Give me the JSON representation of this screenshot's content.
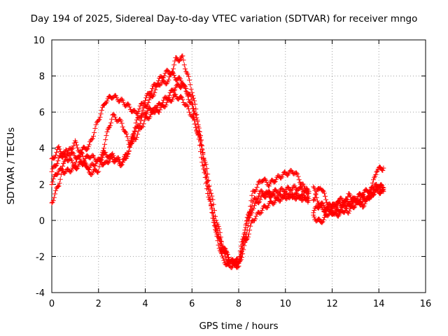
{
  "chart_data": {
    "type": "scatter",
    "title": "Day 194 of 2025, Sidereal Day-to-day VTEC variation (SDTVAR) for receiver mngo",
    "xlabel": "GPS time / hours",
    "ylabel": "SDTVAR / TECUs",
    "xlim": [
      0,
      16
    ],
    "ylim": [
      -4,
      10
    ],
    "xticks": [
      "0",
      "2",
      "4",
      "6",
      "8",
      "10",
      "12",
      "14",
      "16"
    ],
    "yticks": [
      "-4",
      "-2",
      "0",
      "2",
      "4",
      "6",
      "8",
      "10"
    ],
    "grid": true,
    "marker": "plus",
    "color": "#ff0000",
    "series": [
      {
        "x": [
          0.0,
          0.3,
          0.6,
          1.0,
          1.3,
          1.6,
          2.0,
          2.3,
          2.6,
          3.0,
          3.3,
          3.6,
          4.0,
          4.3,
          4.6,
          5.0,
          5.3,
          5.6,
          6.0,
          6.3,
          6.6,
          7.0,
          7.3,
          7.6,
          8.0,
          8.3,
          8.6,
          9.0,
          9.3,
          9.6,
          10.0,
          10.4,
          10.8,
          11.0
        ],
        "y": [
          2.7,
          3.4,
          3.8,
          3.6,
          3.2,
          2.9,
          3.3,
          3.7,
          3.4,
          3.1,
          3.8,
          5.0,
          6.0,
          6.2,
          6.1,
          6.6,
          6.9,
          6.7,
          5.8,
          4.7,
          3.0,
          0.3,
          -1.3,
          -2.2,
          -2.5,
          -1.2,
          0.0,
          0.6,
          0.9,
          1.1,
          1.3,
          1.4,
          1.3,
          1.2
        ]
      },
      {
        "x": [
          0.0,
          0.3,
          0.6,
          1.0,
          1.3,
          1.6,
          2.0,
          2.3,
          2.6,
          3.0,
          3.3,
          3.6,
          4.0,
          4.3,
          4.6,
          5.0,
          5.3,
          5.6,
          6.0,
          6.3,
          6.6,
          7.0,
          7.3,
          7.6,
          8.0,
          8.3,
          8.6,
          9.0,
          9.3,
          9.6,
          10.0,
          10.4,
          10.8,
          11.0
        ],
        "y": [
          3.3,
          4.0,
          3.5,
          3.1,
          3.9,
          4.1,
          5.6,
          6.6,
          6.9,
          6.6,
          6.3,
          5.9,
          6.7,
          7.3,
          7.8,
          8.3,
          7.9,
          7.7,
          6.3,
          4.4,
          2.0,
          -0.2,
          -1.7,
          -2.4,
          -2.2,
          -0.8,
          0.7,
          1.3,
          1.5,
          1.6,
          1.7,
          1.8,
          1.7,
          1.6
        ]
      },
      {
        "x": [
          0.0,
          0.3,
          0.6,
          1.0,
          1.3,
          1.6,
          2.0,
          2.3,
          2.6,
          3.0,
          3.3,
          3.6,
          4.0,
          4.3,
          4.6,
          5.0,
          5.3,
          5.6,
          6.0,
          6.3,
          6.6,
          7.0,
          7.3,
          7.6,
          8.0,
          8.3,
          8.6,
          9.0,
          9.3,
          9.6,
          10.0,
          10.4,
          10.8,
          11.0
        ],
        "y": [
          1.0,
          2.0,
          3.6,
          4.3,
          3.6,
          2.6,
          2.8,
          4.5,
          5.8,
          5.4,
          4.3,
          4.6,
          5.6,
          5.9,
          6.4,
          6.9,
          7.4,
          7.5,
          6.7,
          5.0,
          2.5,
          -0.6,
          -2.1,
          -2.6,
          -2.2,
          -0.2,
          1.0,
          1.6,
          1.4,
          1.3,
          1.4,
          1.3,
          1.2,
          1.1
        ]
      },
      {
        "x": [
          0.0,
          0.3,
          0.6,
          1.0,
          1.3,
          1.6,
          2.0,
          2.3,
          2.6,
          3.0,
          3.3,
          3.6,
          4.0,
          4.3,
          4.6,
          5.0,
          5.3,
          5.6,
          6.0,
          6.3,
          6.6,
          7.0,
          7.3,
          7.6,
          8.0,
          8.3,
          8.6,
          9.0,
          9.3,
          9.6,
          10.0,
          10.4,
          10.8,
          11.0
        ],
        "y": [
          2.1,
          2.8,
          2.7,
          2.9,
          3.2,
          3.6,
          3.3,
          3.1,
          3.6,
          3.2,
          3.9,
          5.4,
          6.3,
          6.9,
          7.6,
          7.7,
          8.9,
          9.0,
          7.2,
          5.2,
          2.6,
          -0.4,
          -1.5,
          -2.1,
          -2.6,
          -0.5,
          1.5,
          2.3,
          2.0,
          2.3,
          2.6,
          2.7,
          1.8,
          1.5
        ]
      },
      {
        "x": [
          11.2,
          11.5,
          11.8,
          12.1,
          12.4,
          12.7,
          13.0,
          13.3,
          13.6,
          13.9,
          14.2
        ],
        "y": [
          1.8,
          0.7,
          0.5,
          0.7,
          1.2,
          1.0,
          1.2,
          1.5,
          1.7,
          1.8,
          1.7
        ]
      },
      {
        "x": [
          11.2,
          11.5,
          11.8,
          12.1,
          12.4,
          12.7,
          13.0,
          13.3,
          13.6,
          13.9,
          14.2
        ],
        "y": [
          0.2,
          -0.1,
          0.3,
          1.0,
          0.9,
          0.5,
          0.9,
          1.0,
          1.4,
          1.6,
          1.6
        ]
      },
      {
        "x": [
          11.2,
          11.5,
          11.8,
          12.1,
          12.4,
          12.7,
          13.0,
          13.3,
          13.6,
          13.9,
          14.2
        ],
        "y": [
          1.2,
          1.9,
          1.0,
          0.4,
          0.7,
          1.4,
          1.0,
          1.3,
          1.2,
          2.0,
          1.8
        ]
      },
      {
        "x": [
          11.2,
          11.5,
          11.8,
          12.1,
          12.4,
          12.7,
          13.0,
          13.3,
          13.6,
          13.9,
          14.2
        ],
        "y": [
          0.5,
          0.9,
          0.7,
          0.3,
          0.4,
          0.8,
          1.2,
          0.8,
          1.3,
          2.8,
          2.9
        ]
      }
    ]
  }
}
